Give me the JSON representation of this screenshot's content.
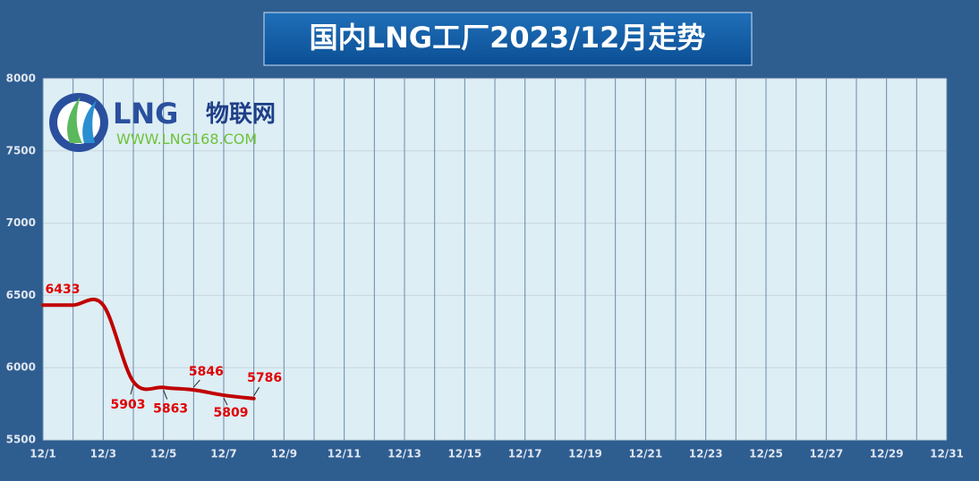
{
  "chart_data": {
    "type": "line",
    "title": "国内LNG工厂2023/12月走势",
    "categories": [
      "12/1",
      null,
      "12/3",
      null,
      "12/5",
      null,
      "12/7",
      null,
      "12/9",
      null,
      "12/11",
      null,
      "12/13",
      null,
      "12/15",
      null,
      "12/17",
      null,
      "12/19",
      null,
      "12/21",
      null,
      "12/23",
      null,
      "12/25",
      null,
      "12/27",
      null,
      "12/29",
      null,
      "12/31"
    ],
    "values": [
      6433,
      6433,
      6433,
      5903,
      5863,
      5846,
      5809,
      5786,
      null,
      null,
      null,
      null,
      null,
      null,
      null,
      null,
      null,
      null,
      null,
      null,
      null,
      null,
      null,
      null,
      null,
      null,
      null,
      null,
      null,
      null,
      null
    ],
    "show_labels": [
      true,
      false,
      false,
      true,
      true,
      true,
      true,
      true
    ],
    "color": "#c00000",
    "label_color": "#e00000",
    "ylim": [
      5500,
      8000
    ],
    "yticks": [
      5500,
      6000,
      6500,
      7000,
      7500,
      8000
    ],
    "grid": true
  },
  "logo": {
    "mark": "LNG",
    "name": "物联网",
    "url": "WWW.LNG168.COM"
  }
}
